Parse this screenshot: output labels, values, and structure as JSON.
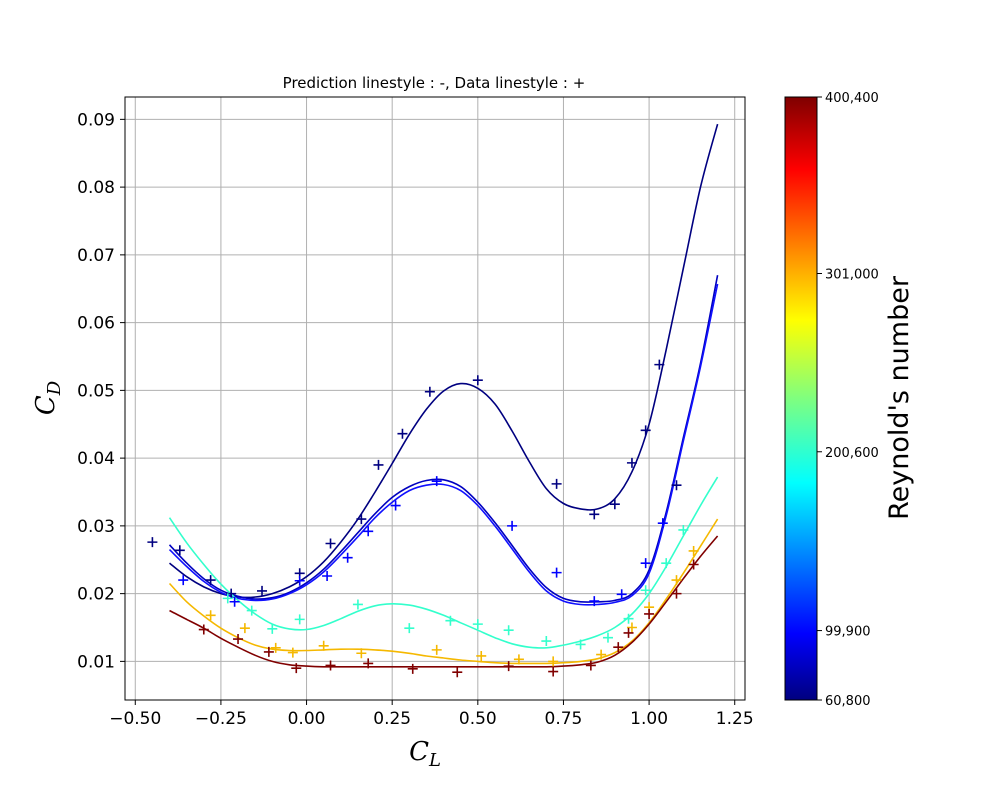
{
  "chart_data": {
    "type": "line",
    "title": "Prediction linestyle : -,     Data linestyle : +",
    "xlabel": {
      "main": "C",
      "sub": "L"
    },
    "ylabel": {
      "main": "C",
      "sub": "D"
    },
    "xlim": [
      -0.53,
      1.28
    ],
    "ylim": [
      0.0043,
      0.0933
    ],
    "xticks": [
      -0.5,
      -0.25,
      0.0,
      0.25,
      0.5,
      0.75,
      1.0,
      1.25
    ],
    "xtick_labels": [
      "−0.50",
      "−0.25",
      "0.00",
      "0.25",
      "0.50",
      "0.75",
      "1.00",
      "1.25"
    ],
    "yticks": [
      0.01,
      0.02,
      0.03,
      0.04,
      0.05,
      0.06,
      0.07,
      0.08,
      0.09
    ],
    "ytick_labels": [
      "0.01",
      "0.02",
      "0.03",
      "0.04",
      "0.05",
      "0.06",
      "0.07",
      "0.08",
      "0.09"
    ],
    "grid": true,
    "colorbar": {
      "label": "Reynold's number",
      "colormap": "jet",
      "range": [
        60800,
        400400
      ],
      "ticks": [
        60800,
        99900,
        200600,
        301000,
        400400
      ],
      "tick_labels": [
        "60,800",
        "99,900",
        "200,600",
        "301,000",
        "400,400"
      ]
    },
    "prediction_curves": [
      {
        "color": "#000080",
        "x": [
          -0.4,
          -0.35,
          -0.3,
          -0.25,
          -0.2,
          -0.15,
          -0.1,
          -0.05,
          0.0,
          0.05,
          0.1,
          0.15,
          0.2,
          0.25,
          0.3,
          0.35,
          0.4,
          0.45,
          0.5,
          0.55,
          0.6,
          0.65,
          0.7,
          0.75,
          0.8,
          0.85,
          0.9,
          0.95,
          1.0,
          1.05,
          1.1,
          1.15,
          1.2
        ],
        "y": [
          0.0245,
          0.0225,
          0.021,
          0.02,
          0.0195,
          0.0195,
          0.02,
          0.021,
          0.0225,
          0.0247,
          0.0276,
          0.031,
          0.035,
          0.0392,
          0.0435,
          0.0472,
          0.0499,
          0.051,
          0.0503,
          0.048,
          0.044,
          0.0395,
          0.0355,
          0.0333,
          0.0325,
          0.0325,
          0.034,
          0.038,
          0.045,
          0.056,
          0.068,
          0.08,
          0.0893
        ]
      },
      {
        "color": "#0000c0",
        "x": [
          -0.4,
          -0.35,
          -0.3,
          -0.25,
          -0.2,
          -0.15,
          -0.1,
          -0.05,
          0.0,
          0.05,
          0.1,
          0.15,
          0.2,
          0.25,
          0.3,
          0.35,
          0.4,
          0.45,
          0.5,
          0.55,
          0.6,
          0.65,
          0.7,
          0.75,
          0.8,
          0.85,
          0.9,
          0.95,
          1.0,
          1.05,
          1.1,
          1.15,
          1.2
        ],
        "y": [
          0.0272,
          0.0245,
          0.0222,
          0.0205,
          0.0196,
          0.0192,
          0.0194,
          0.0202,
          0.0216,
          0.0236,
          0.0262,
          0.029,
          0.0318,
          0.0342,
          0.0358,
          0.0367,
          0.0368,
          0.0358,
          0.0335,
          0.0305,
          0.0271,
          0.0237,
          0.0209,
          0.0193,
          0.0188,
          0.0188,
          0.019,
          0.02,
          0.0235,
          0.032,
          0.043,
          0.054,
          0.067
        ]
      },
      {
        "color": "#1010ff",
        "x": [
          -0.4,
          -0.35,
          -0.3,
          -0.25,
          -0.2,
          -0.15,
          -0.1,
          -0.05,
          0.0,
          0.05,
          0.1,
          0.15,
          0.2,
          0.25,
          0.3,
          0.35,
          0.4,
          0.45,
          0.5,
          0.55,
          0.6,
          0.65,
          0.7,
          0.75,
          0.8,
          0.85,
          0.9,
          0.95,
          1.0,
          1.05,
          1.1,
          1.15,
          1.2
        ],
        "y": [
          0.0265,
          0.024,
          0.0218,
          0.0202,
          0.0193,
          0.019,
          0.0192,
          0.02,
          0.0213,
          0.0232,
          0.0257,
          0.0284,
          0.0312,
          0.0335,
          0.0352,
          0.036,
          0.0361,
          0.0352,
          0.033,
          0.03,
          0.0266,
          0.0232,
          0.0204,
          0.0189,
          0.0184,
          0.0184,
          0.0187,
          0.0197,
          0.023,
          0.0315,
          0.0425,
          0.0535,
          0.0657
        ]
      },
      {
        "color": "#33ffcc",
        "x": [
          -0.4,
          -0.35,
          -0.3,
          -0.25,
          -0.2,
          -0.15,
          -0.1,
          -0.05,
          0.0,
          0.05,
          0.1,
          0.15,
          0.2,
          0.25,
          0.3,
          0.35,
          0.4,
          0.45,
          0.5,
          0.55,
          0.6,
          0.65,
          0.7,
          0.75,
          0.8,
          0.85,
          0.9,
          0.95,
          1.0,
          1.05,
          1.1,
          1.15,
          1.2
        ],
        "y": [
          0.0312,
          0.0275,
          0.0243,
          0.0214,
          0.019,
          0.017,
          0.0155,
          0.0148,
          0.0147,
          0.0153,
          0.0163,
          0.0174,
          0.0182,
          0.0185,
          0.0183,
          0.0177,
          0.0168,
          0.0157,
          0.0146,
          0.0135,
          0.0126,
          0.0121,
          0.012,
          0.0124,
          0.013,
          0.0138,
          0.015,
          0.017,
          0.02,
          0.024,
          0.0285,
          0.033,
          0.0372
        ]
      },
      {
        "color": "#f5b800",
        "x": [
          -0.4,
          -0.35,
          -0.3,
          -0.25,
          -0.2,
          -0.15,
          -0.1,
          -0.05,
          0.0,
          0.05,
          0.1,
          0.15,
          0.2,
          0.25,
          0.3,
          0.35,
          0.4,
          0.45,
          0.5,
          0.55,
          0.6,
          0.65,
          0.7,
          0.75,
          0.8,
          0.85,
          0.9,
          0.95,
          1.0,
          1.05,
          1.1,
          1.15,
          1.2
        ],
        "y": [
          0.0215,
          0.0188,
          0.0167,
          0.0149,
          0.0135,
          0.0124,
          0.0118,
          0.0116,
          0.0116,
          0.0117,
          0.0118,
          0.0118,
          0.0117,
          0.0115,
          0.0112,
          0.0108,
          0.0105,
          0.0102,
          0.01,
          0.0098,
          0.0097,
          0.0097,
          0.0097,
          0.0098,
          0.01,
          0.0104,
          0.0113,
          0.013,
          0.0157,
          0.0192,
          0.023,
          0.027,
          0.031
        ]
      },
      {
        "color": "#800000",
        "x": [
          -0.4,
          -0.35,
          -0.3,
          -0.25,
          -0.2,
          -0.15,
          -0.1,
          -0.05,
          0.0,
          0.05,
          0.1,
          0.15,
          0.2,
          0.25,
          0.3,
          0.35,
          0.4,
          0.45,
          0.5,
          0.55,
          0.6,
          0.65,
          0.7,
          0.75,
          0.8,
          0.85,
          0.9,
          0.95,
          1.0,
          1.05,
          1.1,
          1.15,
          1.2
        ],
        "y": [
          0.0175,
          0.0162,
          0.0149,
          0.0134,
          0.0121,
          0.0109,
          0.01,
          0.0095,
          0.0093,
          0.0092,
          0.0092,
          0.0092,
          0.0092,
          0.0092,
          0.0092,
          0.0092,
          0.0092,
          0.0092,
          0.0092,
          0.0092,
          0.0092,
          0.0092,
          0.0092,
          0.0093,
          0.0095,
          0.0099,
          0.0109,
          0.0128,
          0.0155,
          0.0188,
          0.0222,
          0.0255,
          0.0285
        ]
      }
    ],
    "data_points": [
      {
        "color": "#000080",
        "points": [
          [
            -0.45,
            0.0276
          ],
          [
            -0.37,
            0.0264
          ],
          [
            -0.28,
            0.022
          ],
          [
            -0.22,
            0.02
          ],
          [
            -0.13,
            0.0204
          ],
          [
            -0.02,
            0.023
          ],
          [
            0.07,
            0.0274
          ],
          [
            0.16,
            0.031
          ],
          [
            0.21,
            0.039
          ],
          [
            0.28,
            0.0436
          ],
          [
            0.36,
            0.0498
          ],
          [
            0.5,
            0.0515
          ],
          [
            0.73,
            0.0362
          ],
          [
            0.84,
            0.0317
          ],
          [
            0.9,
            0.0332
          ],
          [
            0.95,
            0.0393
          ],
          [
            0.99,
            0.0441
          ],
          [
            1.03,
            0.0538
          ],
          [
            1.08,
            0.036
          ]
        ]
      },
      {
        "color": "#0000ff",
        "points": [
          [
            -0.36,
            0.022
          ],
          [
            -0.21,
            0.0188
          ],
          [
            -0.02,
            0.0219
          ],
          [
            0.06,
            0.0226
          ],
          [
            0.12,
            0.0253
          ],
          [
            0.18,
            0.0292
          ],
          [
            0.26,
            0.033
          ],
          [
            0.38,
            0.0366
          ],
          [
            0.6,
            0.03
          ],
          [
            0.73,
            0.0231
          ],
          [
            0.84,
            0.0189
          ],
          [
            0.92,
            0.0199
          ],
          [
            0.99,
            0.0245
          ],
          [
            1.04,
            0.0304
          ]
        ]
      },
      {
        "color": "#33ffcc",
        "points": [
          [
            -0.23,
            0.0193
          ],
          [
            -0.16,
            0.0175
          ],
          [
            -0.1,
            0.0148
          ],
          [
            -0.02,
            0.0162
          ],
          [
            0.15,
            0.0184
          ],
          [
            0.3,
            0.0149
          ],
          [
            0.42,
            0.016
          ],
          [
            0.5,
            0.0155
          ],
          [
            0.59,
            0.0146
          ],
          [
            0.7,
            0.013
          ],
          [
            0.8,
            0.0125
          ],
          [
            0.88,
            0.0135
          ],
          [
            0.94,
            0.0163
          ],
          [
            0.99,
            0.0205
          ],
          [
            1.05,
            0.0245
          ],
          [
            1.1,
            0.0294
          ]
        ]
      },
      {
        "color": "#f5b800",
        "points": [
          [
            -0.28,
            0.0168
          ],
          [
            -0.18,
            0.0149
          ],
          [
            -0.09,
            0.012
          ],
          [
            -0.04,
            0.0113
          ],
          [
            0.05,
            0.0123
          ],
          [
            0.16,
            0.0112
          ],
          [
            0.38,
            0.0117
          ],
          [
            0.51,
            0.0108
          ],
          [
            0.62,
            0.0103
          ],
          [
            0.72,
            0.01
          ],
          [
            0.86,
            0.011
          ],
          [
            0.95,
            0.015
          ],
          [
            1.0,
            0.018
          ],
          [
            1.08,
            0.022
          ],
          [
            1.13,
            0.0263
          ]
        ]
      },
      {
        "color": "#800000",
        "points": [
          [
            -0.3,
            0.0147
          ],
          [
            -0.2,
            0.0133
          ],
          [
            -0.11,
            0.0114
          ],
          [
            -0.03,
            0.009
          ],
          [
            0.07,
            0.0094
          ],
          [
            0.18,
            0.0097
          ],
          [
            0.31,
            0.0089
          ],
          [
            0.44,
            0.0084
          ],
          [
            0.59,
            0.0093
          ],
          [
            0.72,
            0.0085
          ],
          [
            0.83,
            0.0094
          ],
          [
            0.91,
            0.0121
          ],
          [
            0.94,
            0.0142
          ],
          [
            1.0,
            0.017
          ],
          [
            1.08,
            0.02
          ],
          [
            1.13,
            0.0243
          ]
        ]
      }
    ]
  }
}
